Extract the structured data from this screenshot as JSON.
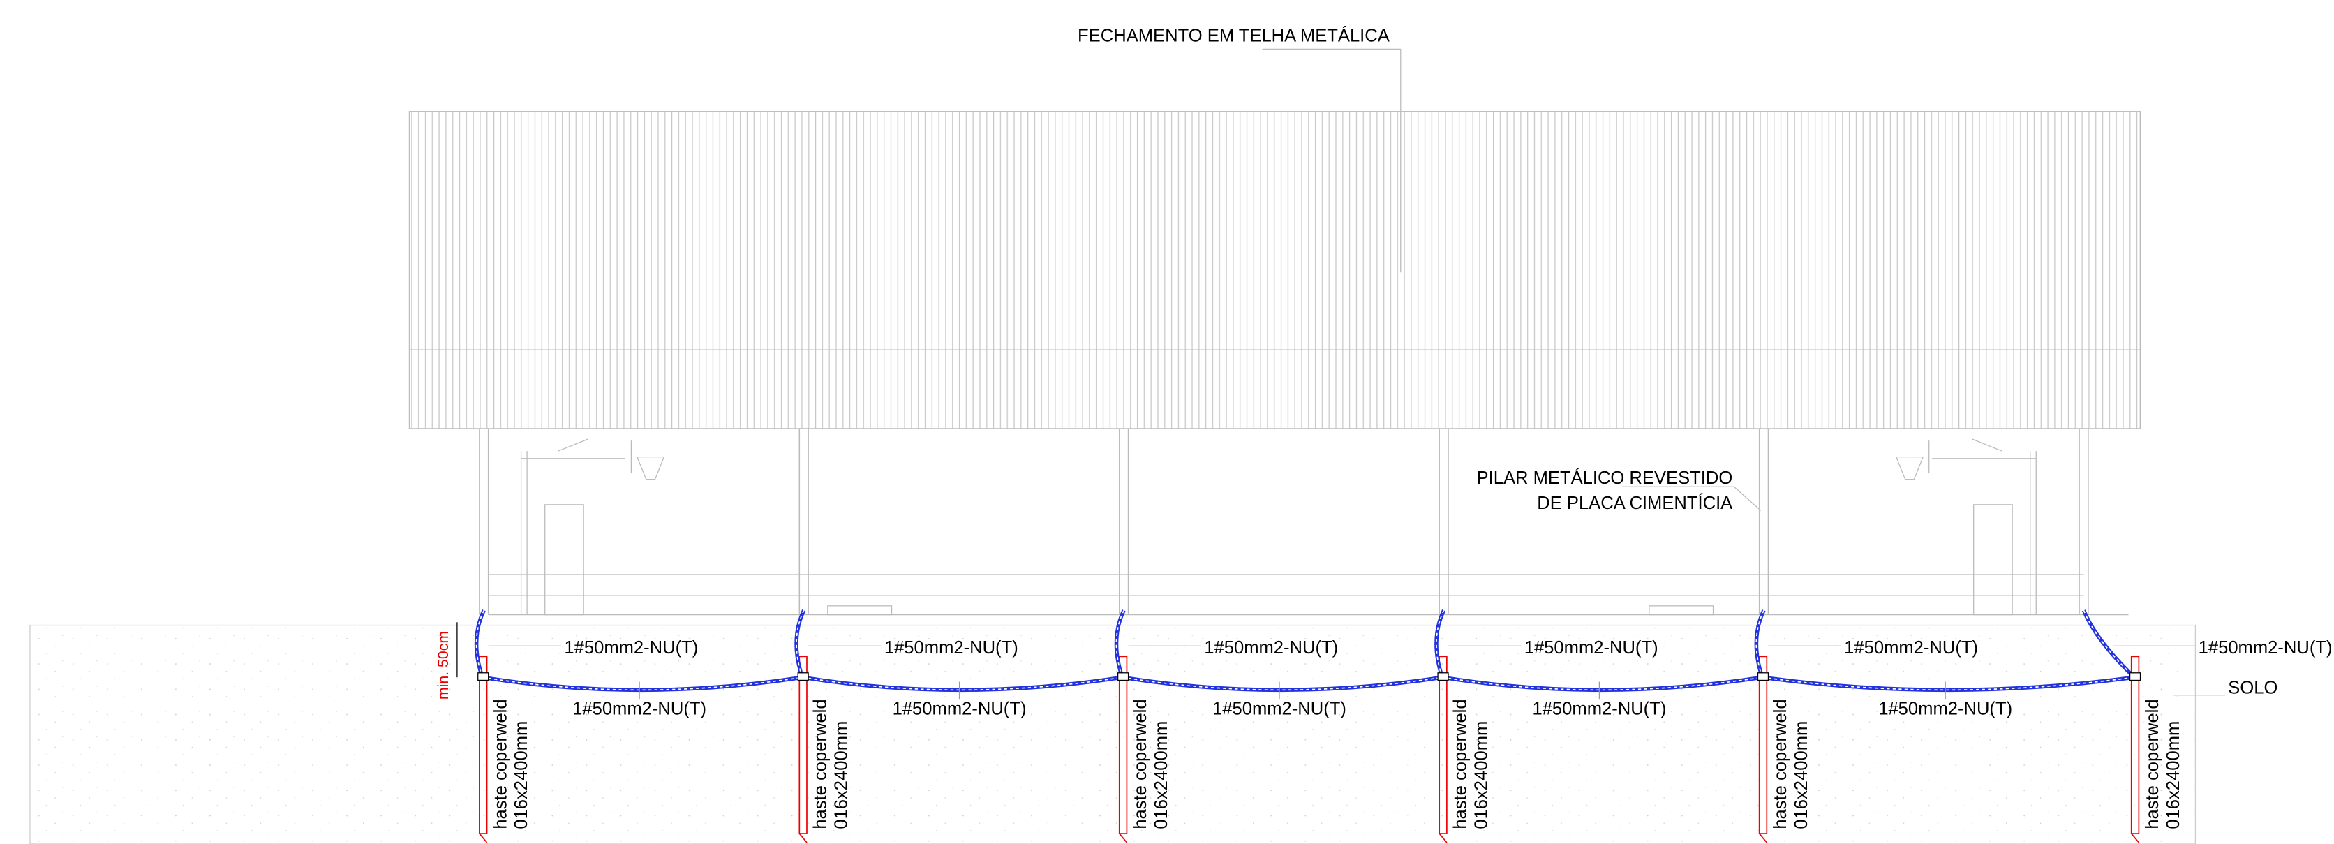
{
  "title_note": "FECHAMENTO EM TELHA METÁLICA",
  "pillar_note": {
    "line1": "PILAR METÁLICO REVESTIDO",
    "line2": "DE PLACA CIMENTÍCIA"
  },
  "upper_cable_labels": [
    "1#50mm2-NU(T)",
    "1#50mm2-NU(T)",
    "1#50mm2-NU(T)",
    "1#50mm2-NU(T)",
    "1#50mm2-NU(T)",
    "1#50mm2-NU(T)"
  ],
  "lower_cable_labels": [
    "1#50mm2-NU(T)",
    "1#50mm2-NU(T)",
    "1#50mm2-NU(T)",
    "1#50mm2-NU(T)",
    "1#50mm2-NU(T)"
  ],
  "soil_label": "SOLO",
  "min_depth_label": "min. 50cm",
  "rod_labels": [
    {
      "line1": "haste coperweld",
      "line2": "016x2400mm"
    },
    {
      "line1": "haste coperweld",
      "line2": "016x2400mm"
    },
    {
      "line1": "haste coperweld",
      "line2": "016x2400mm"
    },
    {
      "line1": "haste coperweld",
      "line2": "016x2400mm"
    },
    {
      "line1": "haste coperweld",
      "line2": "016x2400mm"
    },
    {
      "line1": "haste coperweld",
      "line2": "016x2400mm"
    }
  ]
}
